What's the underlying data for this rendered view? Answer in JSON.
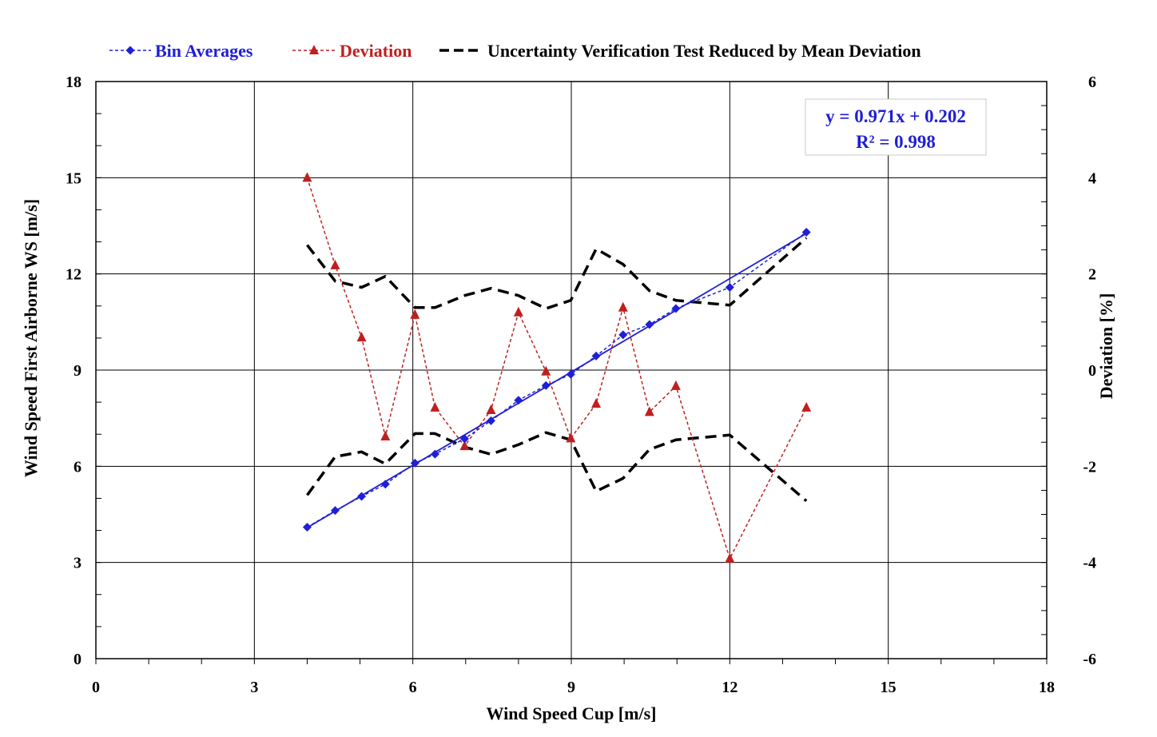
{
  "chart_data": {
    "type": "line",
    "xlabel": "Wind Speed Cup [m/s]",
    "ylabel": "Wind Speed First Airborne WS [m/s]",
    "y2label": "Deviation [%]",
    "xlim": [
      0,
      18
    ],
    "ylim": [
      0,
      18
    ],
    "y2lim": [
      -6,
      6
    ],
    "xticks": [
      "0",
      "3",
      "6",
      "9",
      "12",
      "15",
      "18"
    ],
    "yticks": [
      "0",
      "3",
      "6",
      "9",
      "12",
      "15",
      "18"
    ],
    "y2ticks": [
      "-6",
      "-4",
      "-2",
      "0",
      "2",
      "4",
      "6"
    ],
    "grid": true,
    "legend_position": "top",
    "series": [
      {
        "name": "Bin Averages",
        "axis": "left",
        "color": "#1f1fd6",
        "marker": "diamond",
        "style": "dotted",
        "x": [
          4.0,
          4.53,
          5.03,
          5.48,
          6.04,
          6.42,
          6.98,
          7.48,
          8.0,
          8.52,
          8.99,
          9.47,
          9.98,
          10.48,
          10.98,
          12.0,
          13.45
        ],
        "y": [
          4.1,
          4.62,
          5.06,
          5.44,
          6.1,
          6.38,
          6.86,
          7.42,
          8.06,
          8.52,
          8.87,
          9.44,
          10.1,
          10.42,
          10.92,
          11.58,
          13.3
        ]
      },
      {
        "name": "Deviation",
        "axis": "right",
        "color": "#c01f1f",
        "marker": "triangle",
        "style": "dotted",
        "x": [
          4.0,
          4.53,
          5.03,
          5.48,
          6.04,
          6.42,
          6.98,
          7.48,
          8.0,
          8.52,
          8.99,
          9.47,
          9.98,
          10.48,
          10.98,
          12.0,
          13.45
        ],
        "y": [
          4.0,
          2.18,
          0.68,
          -1.38,
          1.15,
          -0.78,
          -1.58,
          -0.83,
          1.2,
          -0.03,
          -1.42,
          -0.7,
          1.3,
          -0.87,
          -0.33,
          -3.92,
          -0.78
        ]
      },
      {
        "name": "Uncertainty Verification Test Reduced by Mean Deviation",
        "axis": "right",
        "color": "#000000",
        "style": "dashed",
        "upper": {
          "x": [
            4.0,
            4.53,
            5.03,
            5.48,
            6.04,
            6.42,
            6.98,
            7.48,
            8.0,
            8.52,
            8.99,
            9.47,
            9.98,
            10.48,
            10.98,
            12.0,
            13.45
          ],
          "y": [
            2.6,
            1.85,
            1.72,
            1.95,
            1.3,
            1.3,
            1.55,
            1.7,
            1.55,
            1.28,
            1.45,
            2.52,
            2.2,
            1.65,
            1.45,
            1.35,
            2.75
          ]
        },
        "lower": {
          "x": [
            4.0,
            4.53,
            5.03,
            5.48,
            6.04,
            6.42,
            6.98,
            7.48,
            8.0,
            8.52,
            8.99,
            9.47,
            9.98,
            10.48,
            10.98,
            12.0,
            13.45
          ],
          "y": [
            -2.6,
            -1.8,
            -1.7,
            -1.95,
            -1.32,
            -1.32,
            -1.6,
            -1.75,
            -1.55,
            -1.3,
            -1.45,
            -2.52,
            -2.25,
            -1.65,
            -1.45,
            -1.35,
            -2.72
          ]
        }
      }
    ],
    "trendline": {
      "series": "Bin Averages",
      "slope": 0.971,
      "intercept": 0.202,
      "x_range": [
        4.0,
        13.45
      ],
      "color": "#1f1fd6",
      "equation": "y = 0.971x + 0.202",
      "r_squared": "R² = 0.998",
      "label_position": "top-right"
    }
  }
}
